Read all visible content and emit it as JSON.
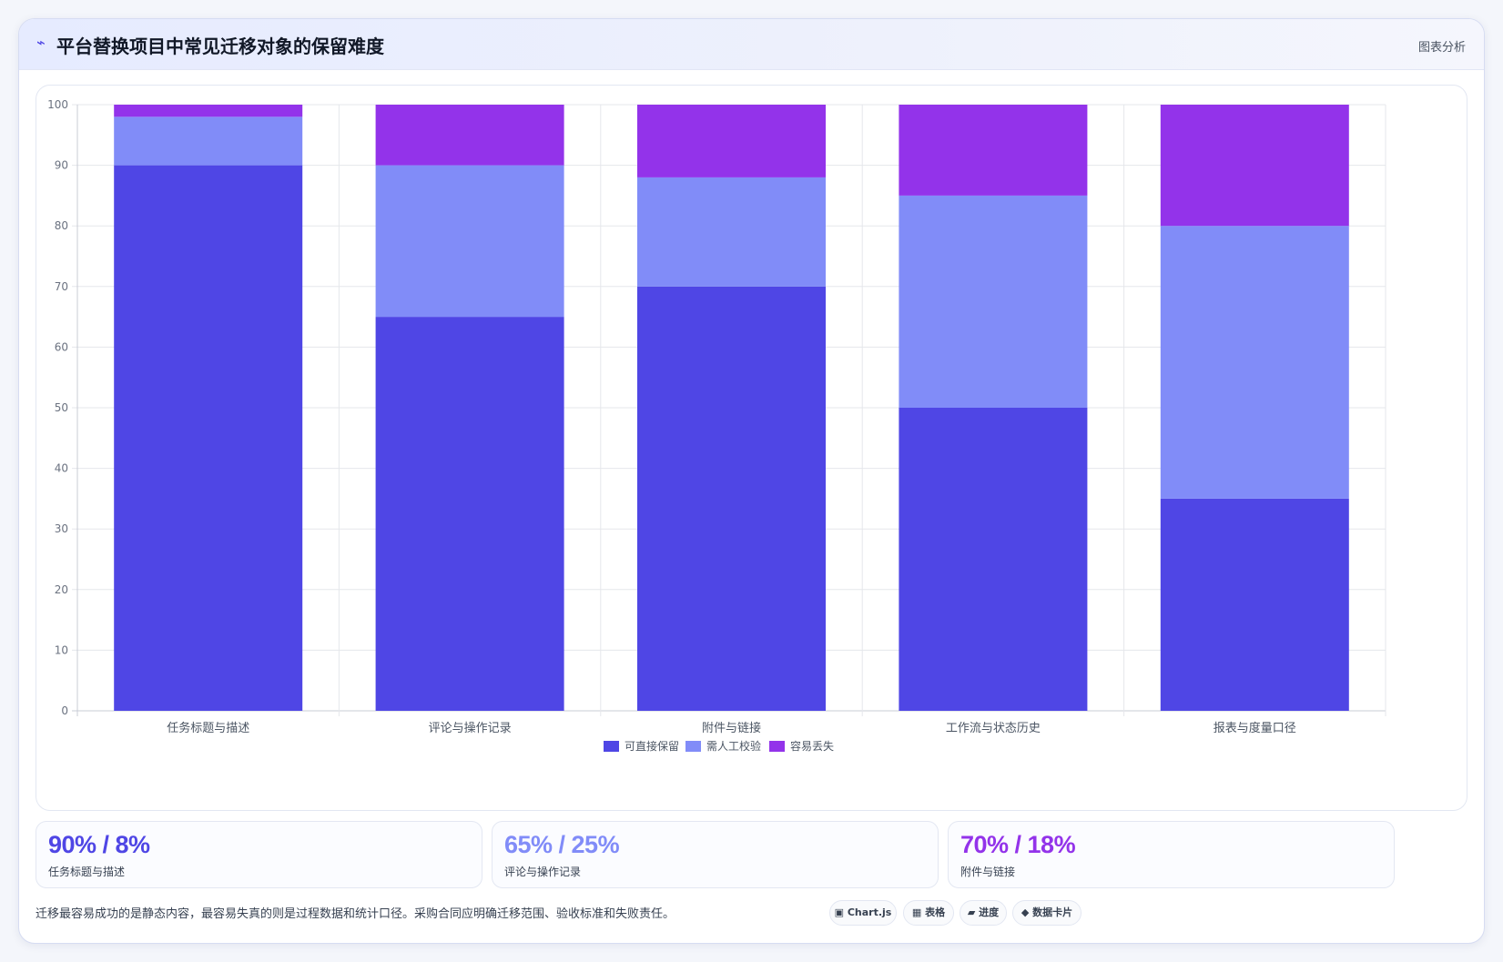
{
  "header": {
    "title": "平台替换项目中常见迁移对象的保留难度",
    "right_label": "图表分析",
    "icon": "bolt-icon"
  },
  "chart_data": {
    "type": "bar",
    "stacked": true,
    "categories": [
      "任务标题与描述",
      "评论与操作记录",
      "附件与链接",
      "工作流与状态历史",
      "报表与度量口径"
    ],
    "series": [
      {
        "name": "可直接保留",
        "values": [
          90,
          65,
          70,
          50,
          35
        ],
        "color": "#4f46e5"
      },
      {
        "name": "需人工校验",
        "values": [
          8,
          25,
          18,
          35,
          45
        ],
        "color": "#818cf8"
      },
      {
        "name": "容易丢失",
        "values": [
          2,
          10,
          12,
          15,
          20
        ],
        "color": "#9333ea"
      }
    ],
    "ylim": [
      0,
      100
    ],
    "yticks": [
      "0",
      "10",
      "20",
      "30",
      "40",
      "50",
      "60",
      "70",
      "80",
      "90",
      "100"
    ],
    "grid": true,
    "legend": "bottom"
  },
  "stats": [
    {
      "value": "90% / 8%",
      "label": "任务标题与描述",
      "color": "#4f46e5"
    },
    {
      "value": "65% / 25%",
      "label": "评论与操作记录",
      "color": "#818cf8"
    },
    {
      "value": "70% / 18%",
      "label": "附件与链接",
      "color": "#9333ea"
    }
  ],
  "note": "迁移最容易成功的是静态内容，最容易失真的则是过程数据和统计口径。采购合同应明确迁移范围、验收标准和失败责任。",
  "chips": [
    "▣ Chart.js",
    "▦ 表格",
    "▰ 进度",
    "◆ 数据卡片"
  ]
}
